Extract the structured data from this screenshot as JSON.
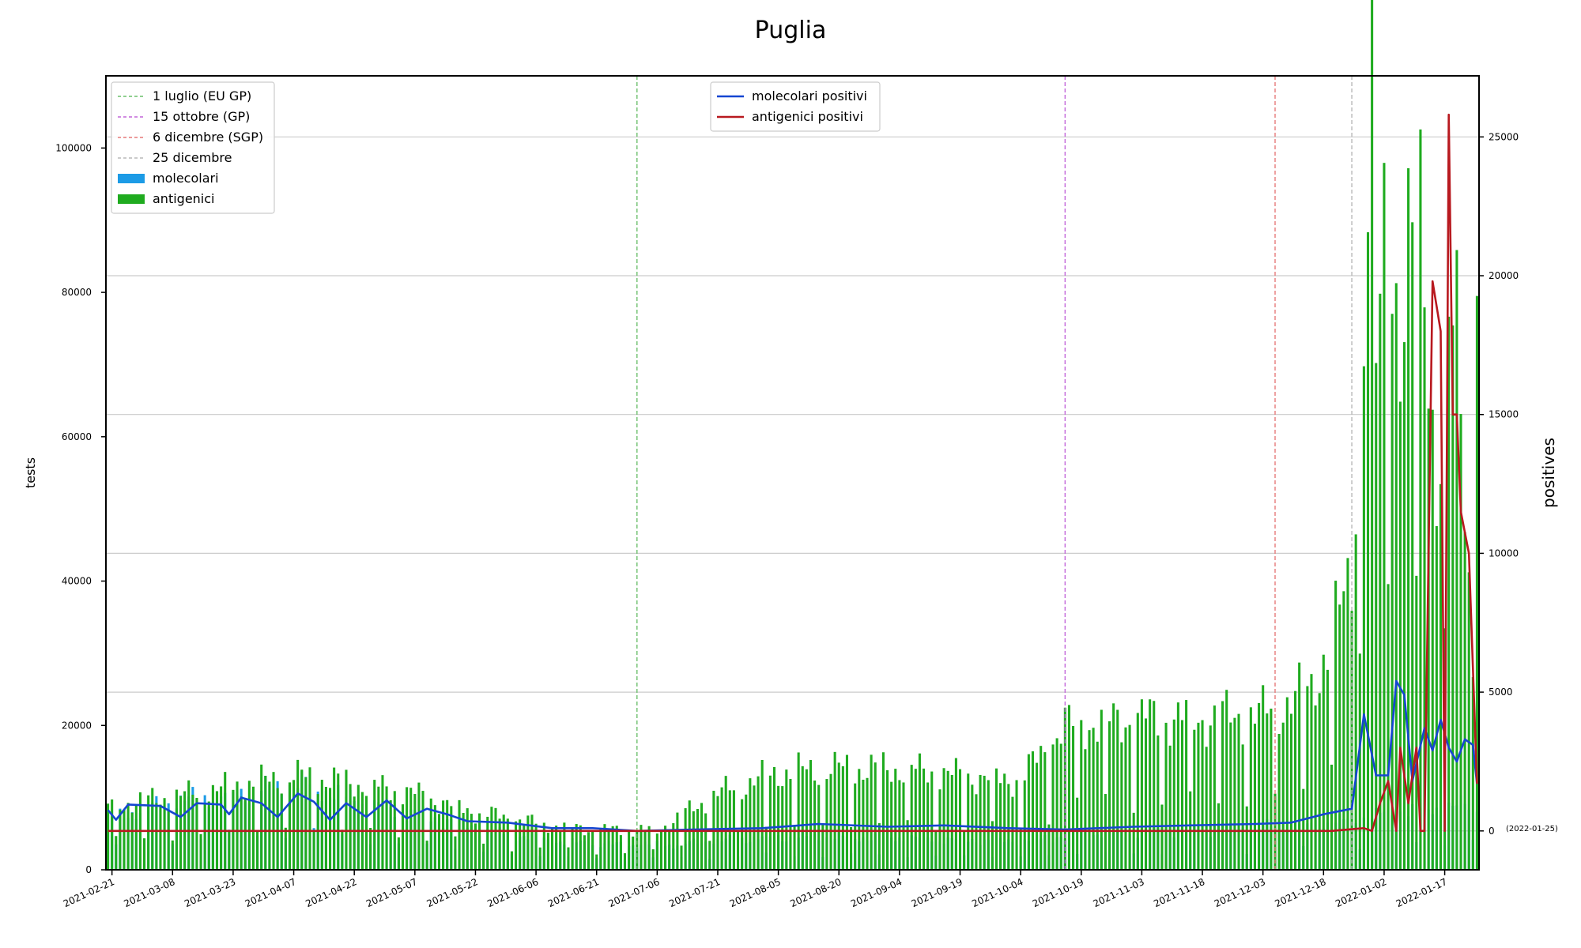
{
  "chart_data": {
    "type": "bar",
    "title": "Puglia",
    "ylabel_left": "tests",
    "ylabel_right": "positives",
    "ylim_left": [
      0,
      110000
    ],
    "ylim_right": [
      -1400,
      27200
    ],
    "yticks_left": [
      0,
      20000,
      40000,
      60000,
      80000,
      100000
    ],
    "yticks_right": [
      0,
      5000,
      10000,
      15000,
      20000,
      25000
    ],
    "right_zero_annotation": "(2022-01-25)",
    "x_start_date": "2021-02-20",
    "x_end_date": "2022-01-25",
    "xtick_labels": [
      "2021-02-21",
      "2021-03-08",
      "2021-03-23",
      "2021-04-07",
      "2021-04-22",
      "2021-05-07",
      "2021-05-22",
      "2021-06-06",
      "2021-06-21",
      "2021-07-06",
      "2021-07-21",
      "2021-08-05",
      "2021-08-20",
      "2021-09-04",
      "2021-09-19",
      "2021-10-04",
      "2021-10-19",
      "2021-11-03",
      "2021-11-18",
      "2021-12-03",
      "2021-12-18",
      "2022-01-02",
      "2022-01-17"
    ],
    "grid": "horizontal",
    "vlines": [
      {
        "name": "1 luglio (EU GP)",
        "date": "2021-07-01",
        "color": "#6cbf6c"
      },
      {
        "name": "15 ottobre (GP)",
        "date": "2021-10-15",
        "color": "#c266d9"
      },
      {
        "name": "6 dicembre (SGP)",
        "date": "2021-12-06",
        "color": "#e77a7a"
      },
      {
        "name": "25 dicembre",
        "date": "2021-12-25",
        "color": "#b8b8b8"
      }
    ],
    "legend_left": {
      "placement": "upper-left",
      "entries": [
        "1 luglio (EU GP)",
        "15 ottobre (GP)",
        "6 dicembre (SGP)",
        "25 dicembre",
        "molecolari",
        "antigenici"
      ]
    },
    "legend_right": {
      "placement": "upper-center",
      "entries": [
        "molecolari positivi",
        "antigenici positivi"
      ]
    },
    "colors": {
      "molecolari": "#1c9be6",
      "antigenici": "#1fab1f",
      "molecolari_positivi": "#1546d1",
      "antigenici_positivi": "#b8191f"
    },
    "series": [
      {
        "name": "molecolari",
        "kind": "bar",
        "axis": "left",
        "keyframes": [
          [
            "2021-02-20",
            7000
          ],
          [
            "2021-03-01",
            8500
          ],
          [
            "2021-03-15",
            10000
          ],
          [
            "2021-03-30",
            11000
          ],
          [
            "2021-04-10",
            12000
          ],
          [
            "2021-04-25",
            9000
          ],
          [
            "2021-05-10",
            7500
          ],
          [
            "2021-05-25",
            5500
          ],
          [
            "2021-06-10",
            4000
          ],
          [
            "2021-06-25",
            3500
          ],
          [
            "2021-07-10",
            3500
          ],
          [
            "2021-08-01",
            4500
          ],
          [
            "2021-09-01",
            4500
          ],
          [
            "2021-10-01",
            4000
          ],
          [
            "2021-10-20",
            5000
          ],
          [
            "2021-11-20",
            5500
          ],
          [
            "2021-12-20",
            6500
          ],
          [
            "2022-01-05",
            8000
          ],
          [
            "2022-01-25",
            9000
          ]
        ]
      },
      {
        "name": "antigenici",
        "kind": "bar",
        "axis": "left",
        "keyframes": [
          [
            "2021-02-20",
            9000
          ],
          [
            "2021-03-08",
            10000
          ],
          [
            "2021-03-23",
            11500
          ],
          [
            "2021-04-07",
            13000
          ],
          [
            "2021-04-22",
            12000
          ],
          [
            "2021-05-07",
            10500
          ],
          [
            "2021-05-22",
            8000
          ],
          [
            "2021-06-06",
            6500
          ],
          [
            "2021-06-21",
            5500
          ],
          [
            "2021-07-06",
            5500
          ],
          [
            "2021-07-21",
            10500
          ],
          [
            "2021-08-05",
            13500
          ],
          [
            "2021-08-20",
            14000
          ],
          [
            "2021-09-04",
            14000
          ],
          [
            "2021-09-19",
            13000
          ],
          [
            "2021-10-04",
            12500
          ],
          [
            "2021-10-15",
            20000
          ],
          [
            "2021-11-03",
            21000
          ],
          [
            "2021-11-18",
            21000
          ],
          [
            "2021-12-03",
            21500
          ],
          [
            "2021-12-15",
            25000
          ],
          [
            "2021-12-25",
            40000
          ],
          [
            "2021-12-29",
            93000
          ],
          [
            "2021-12-30",
            104500
          ],
          [
            "2021-12-31",
            67500
          ],
          [
            "2022-01-03",
            93500
          ],
          [
            "2022-01-06",
            75000
          ],
          [
            "2022-01-08",
            86500
          ],
          [
            "2022-01-11",
            87000
          ],
          [
            "2022-01-15",
            55000
          ],
          [
            "2022-01-18",
            75000
          ],
          [
            "2022-01-20",
            72000
          ],
          [
            "2022-01-23",
            40000
          ],
          [
            "2022-01-25",
            95000
          ]
        ]
      },
      {
        "name": "molecolari positivi",
        "kind": "line",
        "axis": "right",
        "keyframes": [
          [
            "2021-02-20",
            750
          ],
          [
            "2021-02-22",
            400
          ],
          [
            "2021-02-25",
            950
          ],
          [
            "2021-03-05",
            900
          ],
          [
            "2021-03-10",
            500
          ],
          [
            "2021-03-14",
            1000
          ],
          [
            "2021-03-20",
            950
          ],
          [
            "2021-03-22",
            600
          ],
          [
            "2021-03-25",
            1200
          ],
          [
            "2021-03-30",
            1000
          ],
          [
            "2021-04-03",
            500
          ],
          [
            "2021-04-08",
            1350
          ],
          [
            "2021-04-12",
            1050
          ],
          [
            "2021-04-16",
            400
          ],
          [
            "2021-04-20",
            1000
          ],
          [
            "2021-04-25",
            500
          ],
          [
            "2021-04-30",
            1100
          ],
          [
            "2021-05-05",
            450
          ],
          [
            "2021-05-10",
            800
          ],
          [
            "2021-05-15",
            600
          ],
          [
            "2021-05-20",
            350
          ],
          [
            "2021-05-30",
            300
          ],
          [
            "2021-06-10",
            100
          ],
          [
            "2021-06-20",
            100
          ],
          [
            "2021-07-01",
            0
          ],
          [
            "2021-07-15",
            50
          ],
          [
            "2021-08-01",
            100
          ],
          [
            "2021-08-15",
            250
          ],
          [
            "2021-09-01",
            150
          ],
          [
            "2021-09-15",
            200
          ],
          [
            "2021-10-01",
            100
          ],
          [
            "2021-10-15",
            50
          ],
          [
            "2021-11-01",
            150
          ],
          [
            "2021-11-15",
            200
          ],
          [
            "2021-12-01",
            250
          ],
          [
            "2021-12-10",
            300
          ],
          [
            "2021-12-18",
            600
          ],
          [
            "2021-12-25",
            800
          ],
          [
            "2021-12-28",
            4200
          ],
          [
            "2021-12-31",
            2000
          ],
          [
            "2022-01-03",
            2000
          ],
          [
            "2022-01-05",
            5400
          ],
          [
            "2022-01-07",
            4900
          ],
          [
            "2022-01-09",
            1800
          ],
          [
            "2022-01-12",
            3700
          ],
          [
            "2022-01-14",
            2900
          ],
          [
            "2022-01-16",
            4000
          ],
          [
            "2022-01-18",
            3000
          ],
          [
            "2022-01-20",
            2500
          ],
          [
            "2022-01-22",
            3300
          ],
          [
            "2022-01-24",
            3100
          ],
          [
            "2022-01-25",
            1700
          ]
        ]
      },
      {
        "name": "antigenici positivi",
        "kind": "line",
        "axis": "right",
        "keyframes": [
          [
            "2021-02-20",
            0
          ],
          [
            "2021-12-20",
            0
          ],
          [
            "2021-12-28",
            100
          ],
          [
            "2021-12-30",
            0
          ],
          [
            "2022-01-01",
            1000
          ],
          [
            "2022-01-03",
            1800
          ],
          [
            "2022-01-05",
            0
          ],
          [
            "2022-01-06",
            3000
          ],
          [
            "2022-01-08",
            1000
          ],
          [
            "2022-01-10",
            3000
          ],
          [
            "2022-01-11",
            0
          ],
          [
            "2022-01-12",
            0
          ],
          [
            "2022-01-14",
            19800
          ],
          [
            "2022-01-16",
            18000
          ],
          [
            "2022-01-17",
            0
          ],
          [
            "2022-01-18",
            25800
          ],
          [
            "2022-01-19",
            15000
          ],
          [
            "2022-01-20",
            15000
          ],
          [
            "2022-01-21",
            11500
          ],
          [
            "2022-01-23",
            10000
          ],
          [
            "2022-01-25",
            1700
          ]
        ]
      }
    ]
  }
}
